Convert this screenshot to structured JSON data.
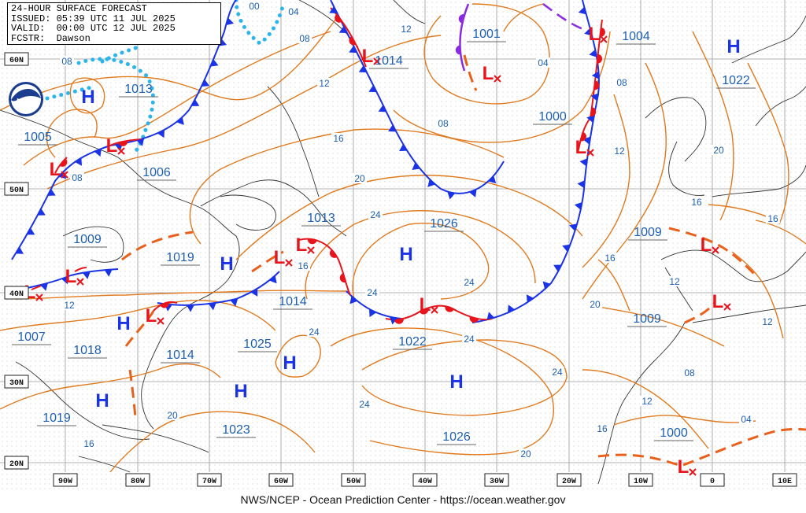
{
  "header": {
    "line1": "24-HOUR SURFACE FORECAST",
    "line2": "ISSUED: 05:39 UTC 11 JUL 2025",
    "line3": "VALID:  00:00 UTC 12 JUL 2025",
    "line4": "FCSTR:  Dawson"
  },
  "credit": "NWS/NCEP - Ocean Prediction Center - https://ocean.weather.gov",
  "logo_text": "NOAA",
  "lat_labels": [
    "60N",
    "50N",
    "40N",
    "30N",
    "20N"
  ],
  "lon_labels": [
    "90W",
    "80W",
    "70W",
    "60W",
    "50W",
    "40W",
    "30W",
    "20W",
    "10W",
    "0",
    "10E"
  ],
  "pressure_centers": [
    {
      "type": "H",
      "value": "1013"
    },
    {
      "type": "L",
      "value": "1005"
    },
    {
      "type": "L",
      "value": "1006"
    },
    {
      "type": "L",
      "value": "1001"
    },
    {
      "type": "L",
      "value": "1014"
    },
    {
      "type": "L",
      "value": "1004"
    },
    {
      "type": "H",
      "value": "1022"
    },
    {
      "type": "L",
      "value": "1000"
    },
    {
      "type": "H",
      "value": "1026"
    },
    {
      "type": "L",
      "value": "1013"
    },
    {
      "type": "H",
      "value": "1019"
    },
    {
      "type": "L",
      "value": "1009"
    },
    {
      "type": "L",
      "value": "1014"
    },
    {
      "type": "H",
      "value": "1025"
    },
    {
      "type": "L",
      "value": "1022"
    },
    {
      "type": "L",
      "value": "1009"
    },
    {
      "type": "L",
      "value": "1009"
    },
    {
      "type": "H",
      "value": "1018"
    },
    {
      "type": "L",
      "value": "1014"
    },
    {
      "type": "L",
      "value": "1007"
    },
    {
      "type": "H",
      "value": "1019"
    },
    {
      "type": "H",
      "value": "1023"
    },
    {
      "type": "H",
      "value": "1026"
    },
    {
      "type": "L",
      "value": "1000"
    }
  ],
  "isobar_labels": [
    "00",
    "04",
    "08",
    "12",
    "16",
    "20",
    "24"
  ],
  "colors": {
    "isobar": "#e07a1f",
    "cold_front": "#1a33e6",
    "warm_front": "#e8141c",
    "occluded_front": "#8a2be2",
    "trough": "#e8601c",
    "ridge": "#2bb5ea",
    "high": "#1a33e6",
    "low": "#e8141c",
    "label": "#1d5fb0",
    "grid": "#888888"
  }
}
